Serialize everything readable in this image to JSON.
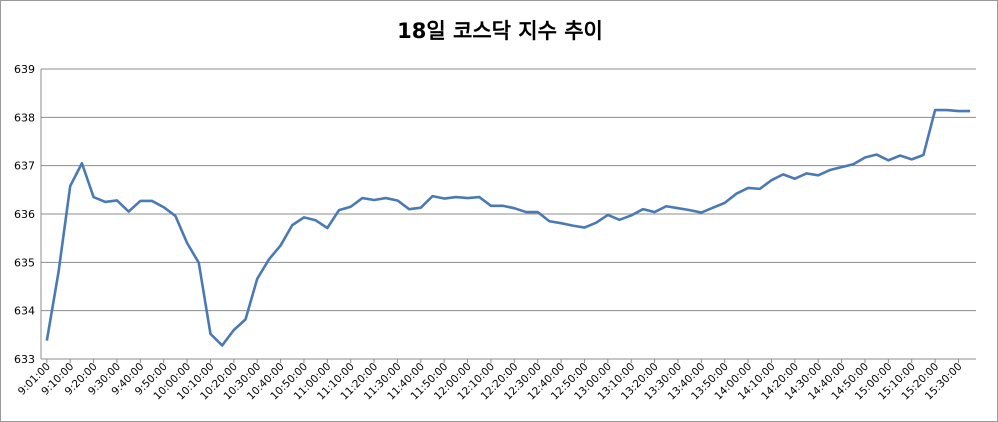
{
  "chart_data": {
    "type": "line",
    "title": "18일 코스닥 지수 추이",
    "xlabel": "",
    "ylabel": "",
    "ylim": [
      633,
      639
    ],
    "yticks": [
      633,
      634,
      635,
      636,
      637,
      638,
      639
    ],
    "grid": true,
    "legend": "none",
    "line_color": "#4a7ab5",
    "x_tick_labels": [
      "9:01:00",
      "9:10:00",
      "9:20:00",
      "9:30:00",
      "9:40:00",
      "9:50:00",
      "10:00:00",
      "10:10:00",
      "10:20:00",
      "10:30:00",
      "10:40:00",
      "10:50:00",
      "11:00:00",
      "11:10:00",
      "11:20:00",
      "11:30:00",
      "11:40:00",
      "11:50:00",
      "12:00:00",
      "12:10:00",
      "12:20:00",
      "12:30:00",
      "12:40:00",
      "12:50:00",
      "13:00:00",
      "13:10:00",
      "13:20:00",
      "13:30:00",
      "13:40:00",
      "13:50:00",
      "14:00:00",
      "14:10:00",
      "14:20:00",
      "14:30:00",
      "14:40:00",
      "14:50:00",
      "15:00:00",
      "15:10:00",
      "15:20:00",
      "15:30:00"
    ],
    "series": [
      {
        "values": [
          633.38,
          634.8,
          636.58,
          637.05,
          636.35,
          636.25,
          636.28,
          636.05,
          636.27,
          636.27,
          636.14,
          635.96,
          635.4,
          634.99,
          633.52,
          633.28,
          633.6,
          633.82,
          634.66,
          635.06,
          635.35,
          635.77,
          635.93,
          635.87,
          635.71,
          636.08,
          636.15,
          636.33,
          636.29,
          636.33,
          636.28,
          636.1,
          636.13,
          636.37,
          636.32,
          636.35,
          636.33,
          636.35,
          636.17,
          636.17,
          636.12,
          636.04,
          636.04,
          635.85,
          635.81,
          635.76,
          635.72,
          635.82,
          635.98,
          635.88,
          635.97,
          636.1,
          636.04,
          636.16,
          636.12,
          636.08,
          636.03,
          636.13,
          636.23,
          636.42,
          636.54,
          636.52,
          636.7,
          636.82,
          636.73,
          636.84,
          636.8,
          636.91,
          636.97,
          637.03,
          637.17,
          637.23,
          637.11,
          637.21,
          637.13,
          637.22,
          638.15,
          638.15,
          638.13,
          638.13
        ]
      }
    ]
  }
}
